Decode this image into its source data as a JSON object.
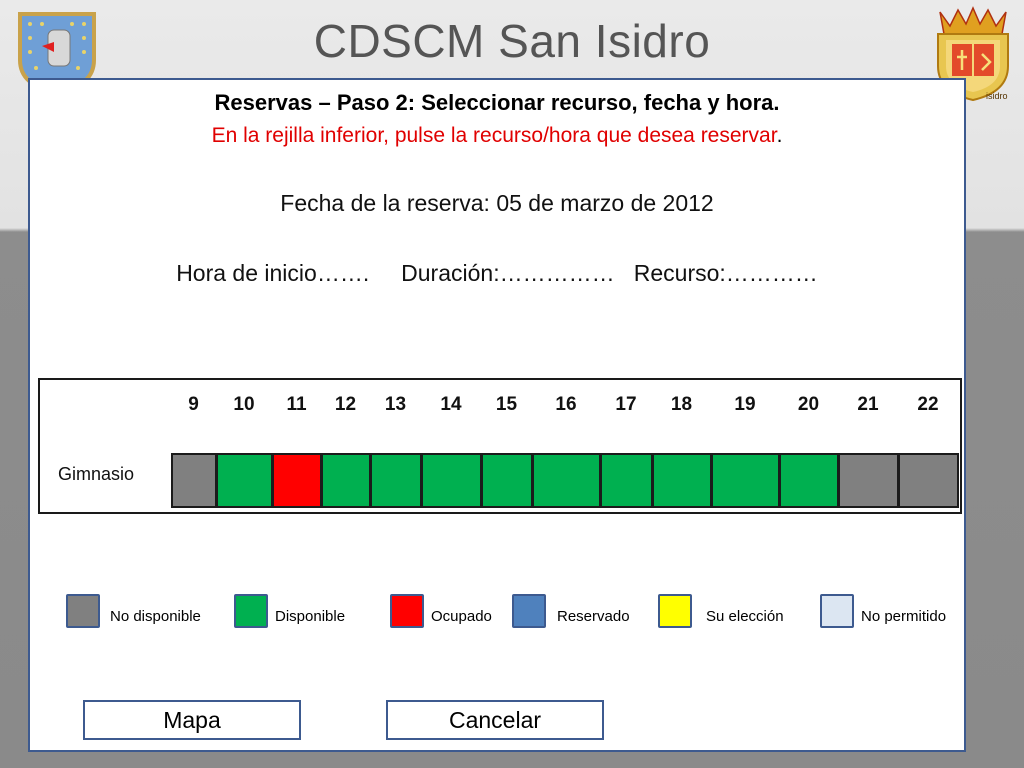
{
  "header": {
    "title": "CDSCM San Isidro",
    "right_logo_text": "isidro"
  },
  "step": {
    "title": "Reservas – Paso 2: Seleccionar  recurso, fecha y hora.",
    "instruction_red": "En la rejilla inferior, pulse la recurso/hora que desea reservar",
    "instruction_end": "."
  },
  "reservation": {
    "date_line": "Fecha de la reserva:   05 de marzo de 2012",
    "info_line": "Hora de inicio…….     Duración:……………   Recurso:…………"
  },
  "grid": {
    "hours": [
      "9",
      "10",
      "11",
      "12",
      "13",
      "14",
      "15",
      "16",
      "17",
      "18",
      "19",
      "20",
      "21",
      "22"
    ],
    "resources": [
      {
        "name": "Gimnasio",
        "slots": [
          "no_disponible",
          "disponible",
          "ocupado",
          "disponible",
          "disponible",
          "disponible",
          "disponible",
          "disponible",
          "disponible",
          "disponible",
          "disponible",
          "disponible",
          "no_disponible",
          "no_disponible"
        ]
      }
    ]
  },
  "status_colors": {
    "no_disponible": "#808080",
    "disponible": "#00b050",
    "ocupado": "#ff0000",
    "reservado": "#4f81bd",
    "su_eleccion": "#ffff00",
    "no_permitido": "#dce6f2"
  },
  "legend": [
    {
      "key": "no_disponible",
      "label": "No disponible"
    },
    {
      "key": "disponible",
      "label": "Disponible"
    },
    {
      "key": "ocupado",
      "label": "Ocupado"
    },
    {
      "key": "reservado",
      "label": "Reservado"
    },
    {
      "key": "su_eleccion",
      "label": "Su elección"
    },
    {
      "key": "no_permitido",
      "label": "No permitido"
    }
  ],
  "buttons": {
    "map_label": "Mapa",
    "cancel_label": "Cancelar"
  }
}
